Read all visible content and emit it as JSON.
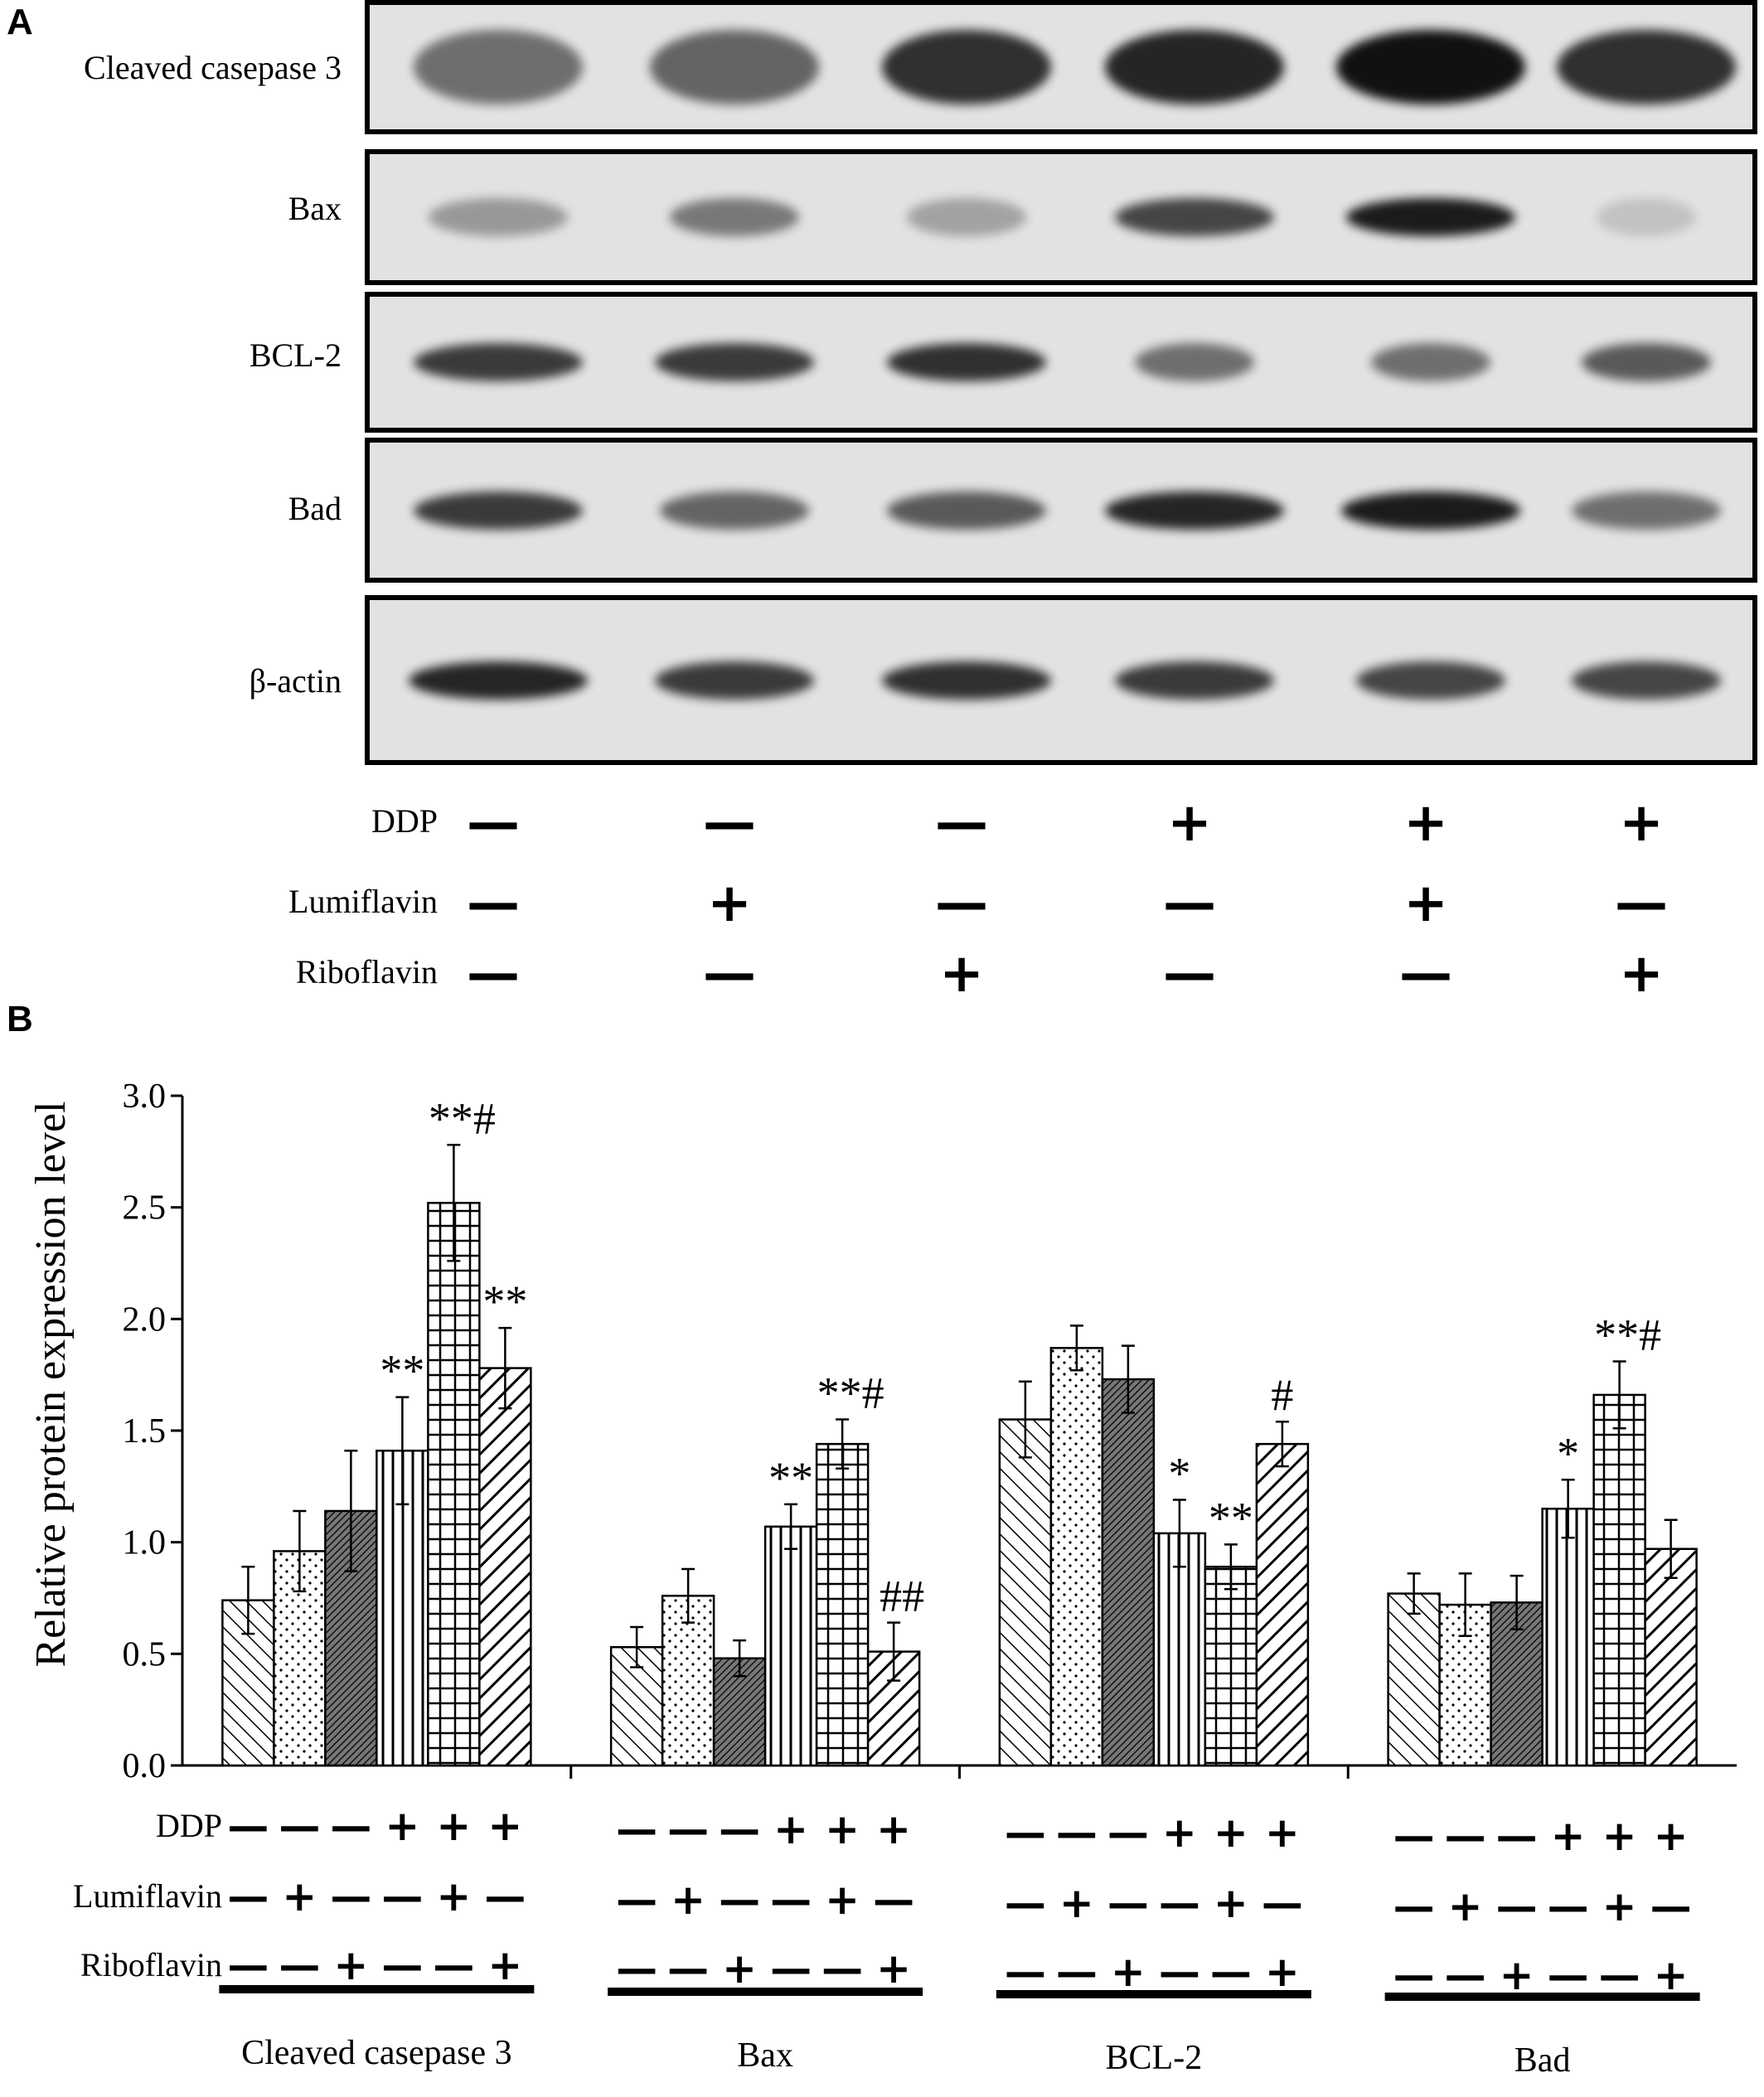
{
  "panel_a": {
    "letter": "A",
    "blots": [
      {
        "label": "Cleaved casepase 3",
        "intensities": [
          0.55,
          0.6,
          0.85,
          0.9,
          1.0,
          0.85
        ],
        "widths": [
          0.85,
          0.85,
          0.85,
          0.9,
          0.95,
          0.9
        ]
      },
      {
        "label": "Bax",
        "intensities": [
          0.35,
          0.5,
          0.3,
          0.75,
          0.95,
          0.15
        ],
        "widths": [
          0.7,
          0.65,
          0.6,
          0.8,
          0.85,
          0.5
        ]
      },
      {
        "label": "BCL-2",
        "intensities": [
          0.8,
          0.8,
          0.85,
          0.55,
          0.55,
          0.65
        ],
        "widths": [
          0.85,
          0.8,
          0.8,
          0.6,
          0.6,
          0.65
        ]
      },
      {
        "label": "Bad",
        "intensities": [
          0.8,
          0.6,
          0.65,
          0.9,
          0.95,
          0.55
        ],
        "widths": [
          0.85,
          0.75,
          0.8,
          0.9,
          0.9,
          0.75
        ]
      },
      {
        "label": "β-actin",
        "intensities": [
          0.9,
          0.8,
          0.85,
          0.8,
          0.75,
          0.75
        ],
        "widths": [
          0.9,
          0.8,
          0.85,
          0.8,
          0.75,
          0.75
        ]
      }
    ],
    "treatments": [
      {
        "label": "DDP",
        "symbols": [
          "—",
          "—",
          "—",
          "+",
          "+",
          "+"
        ]
      },
      {
        "label": "Lumiflavin",
        "symbols": [
          "—",
          "+",
          "—",
          "—",
          "+",
          "—"
        ]
      },
      {
        "label": "Riboflavin",
        "symbols": [
          "—",
          "—",
          "+",
          "—",
          "—",
          "+"
        ]
      }
    ]
  },
  "panel_b": {
    "letter": "B"
  },
  "chart_data": {
    "type": "bar",
    "ylabel": "Relative protein expression level",
    "ylim": [
      0,
      3.0
    ],
    "yticks": [
      "0.0",
      "0.5",
      "1.0",
      "1.5",
      "2.0",
      "2.5",
      "3.0"
    ],
    "categories": [
      "Cleaved casepase 3",
      "Bax",
      "BCL-2",
      "Bad"
    ],
    "series": [
      {
        "values": [
          0.74,
          0.53,
          1.55,
          0.77
        ],
        "errors": [
          0.15,
          0.09,
          0.17,
          0.09
        ],
        "annotations": [
          "",
          "",
          "",
          ""
        ],
        "pattern": "diag-left"
      },
      {
        "values": [
          0.96,
          0.76,
          1.87,
          0.72
        ],
        "errors": [
          0.18,
          0.12,
          0.1,
          0.14
        ],
        "annotations": [
          "",
          "",
          "",
          ""
        ],
        "pattern": "dots"
      },
      {
        "values": [
          1.14,
          0.48,
          1.73,
          0.73
        ],
        "errors": [
          0.27,
          0.08,
          0.15,
          0.12
        ],
        "annotations": [
          "",
          "",
          "",
          ""
        ],
        "pattern": "dense-diag"
      },
      {
        "values": [
          1.41,
          1.07,
          1.04,
          1.15
        ],
        "errors": [
          0.24,
          0.1,
          0.15,
          0.13
        ],
        "annotations": [
          "**",
          "**",
          "*",
          "*"
        ],
        "pattern": "vertical"
      },
      {
        "values": [
          2.52,
          1.44,
          0.89,
          1.66
        ],
        "errors": [
          0.26,
          0.11,
          0.1,
          0.15
        ],
        "annotations": [
          "**#",
          "**#",
          "**",
          "**#"
        ],
        "pattern": "grid"
      },
      {
        "values": [
          1.78,
          0.51,
          1.44,
          0.97
        ],
        "errors": [
          0.18,
          0.13,
          0.1,
          0.13
        ],
        "annotations": [
          "**",
          "##",
          "#",
          ""
        ],
        "pattern": "diag-right"
      }
    ],
    "treatments": [
      {
        "label": "DDP",
        "symbols": [
          "—",
          "—",
          "—",
          "+",
          "+",
          "+"
        ]
      },
      {
        "label": "Lumiflavin",
        "symbols": [
          "—",
          "+",
          "—",
          "—",
          "+",
          "—"
        ]
      },
      {
        "label": "Riboflavin",
        "symbols": [
          "—",
          "—",
          "+",
          "—",
          "—",
          "+"
        ]
      }
    ],
    "grid": false,
    "legend": "none"
  }
}
